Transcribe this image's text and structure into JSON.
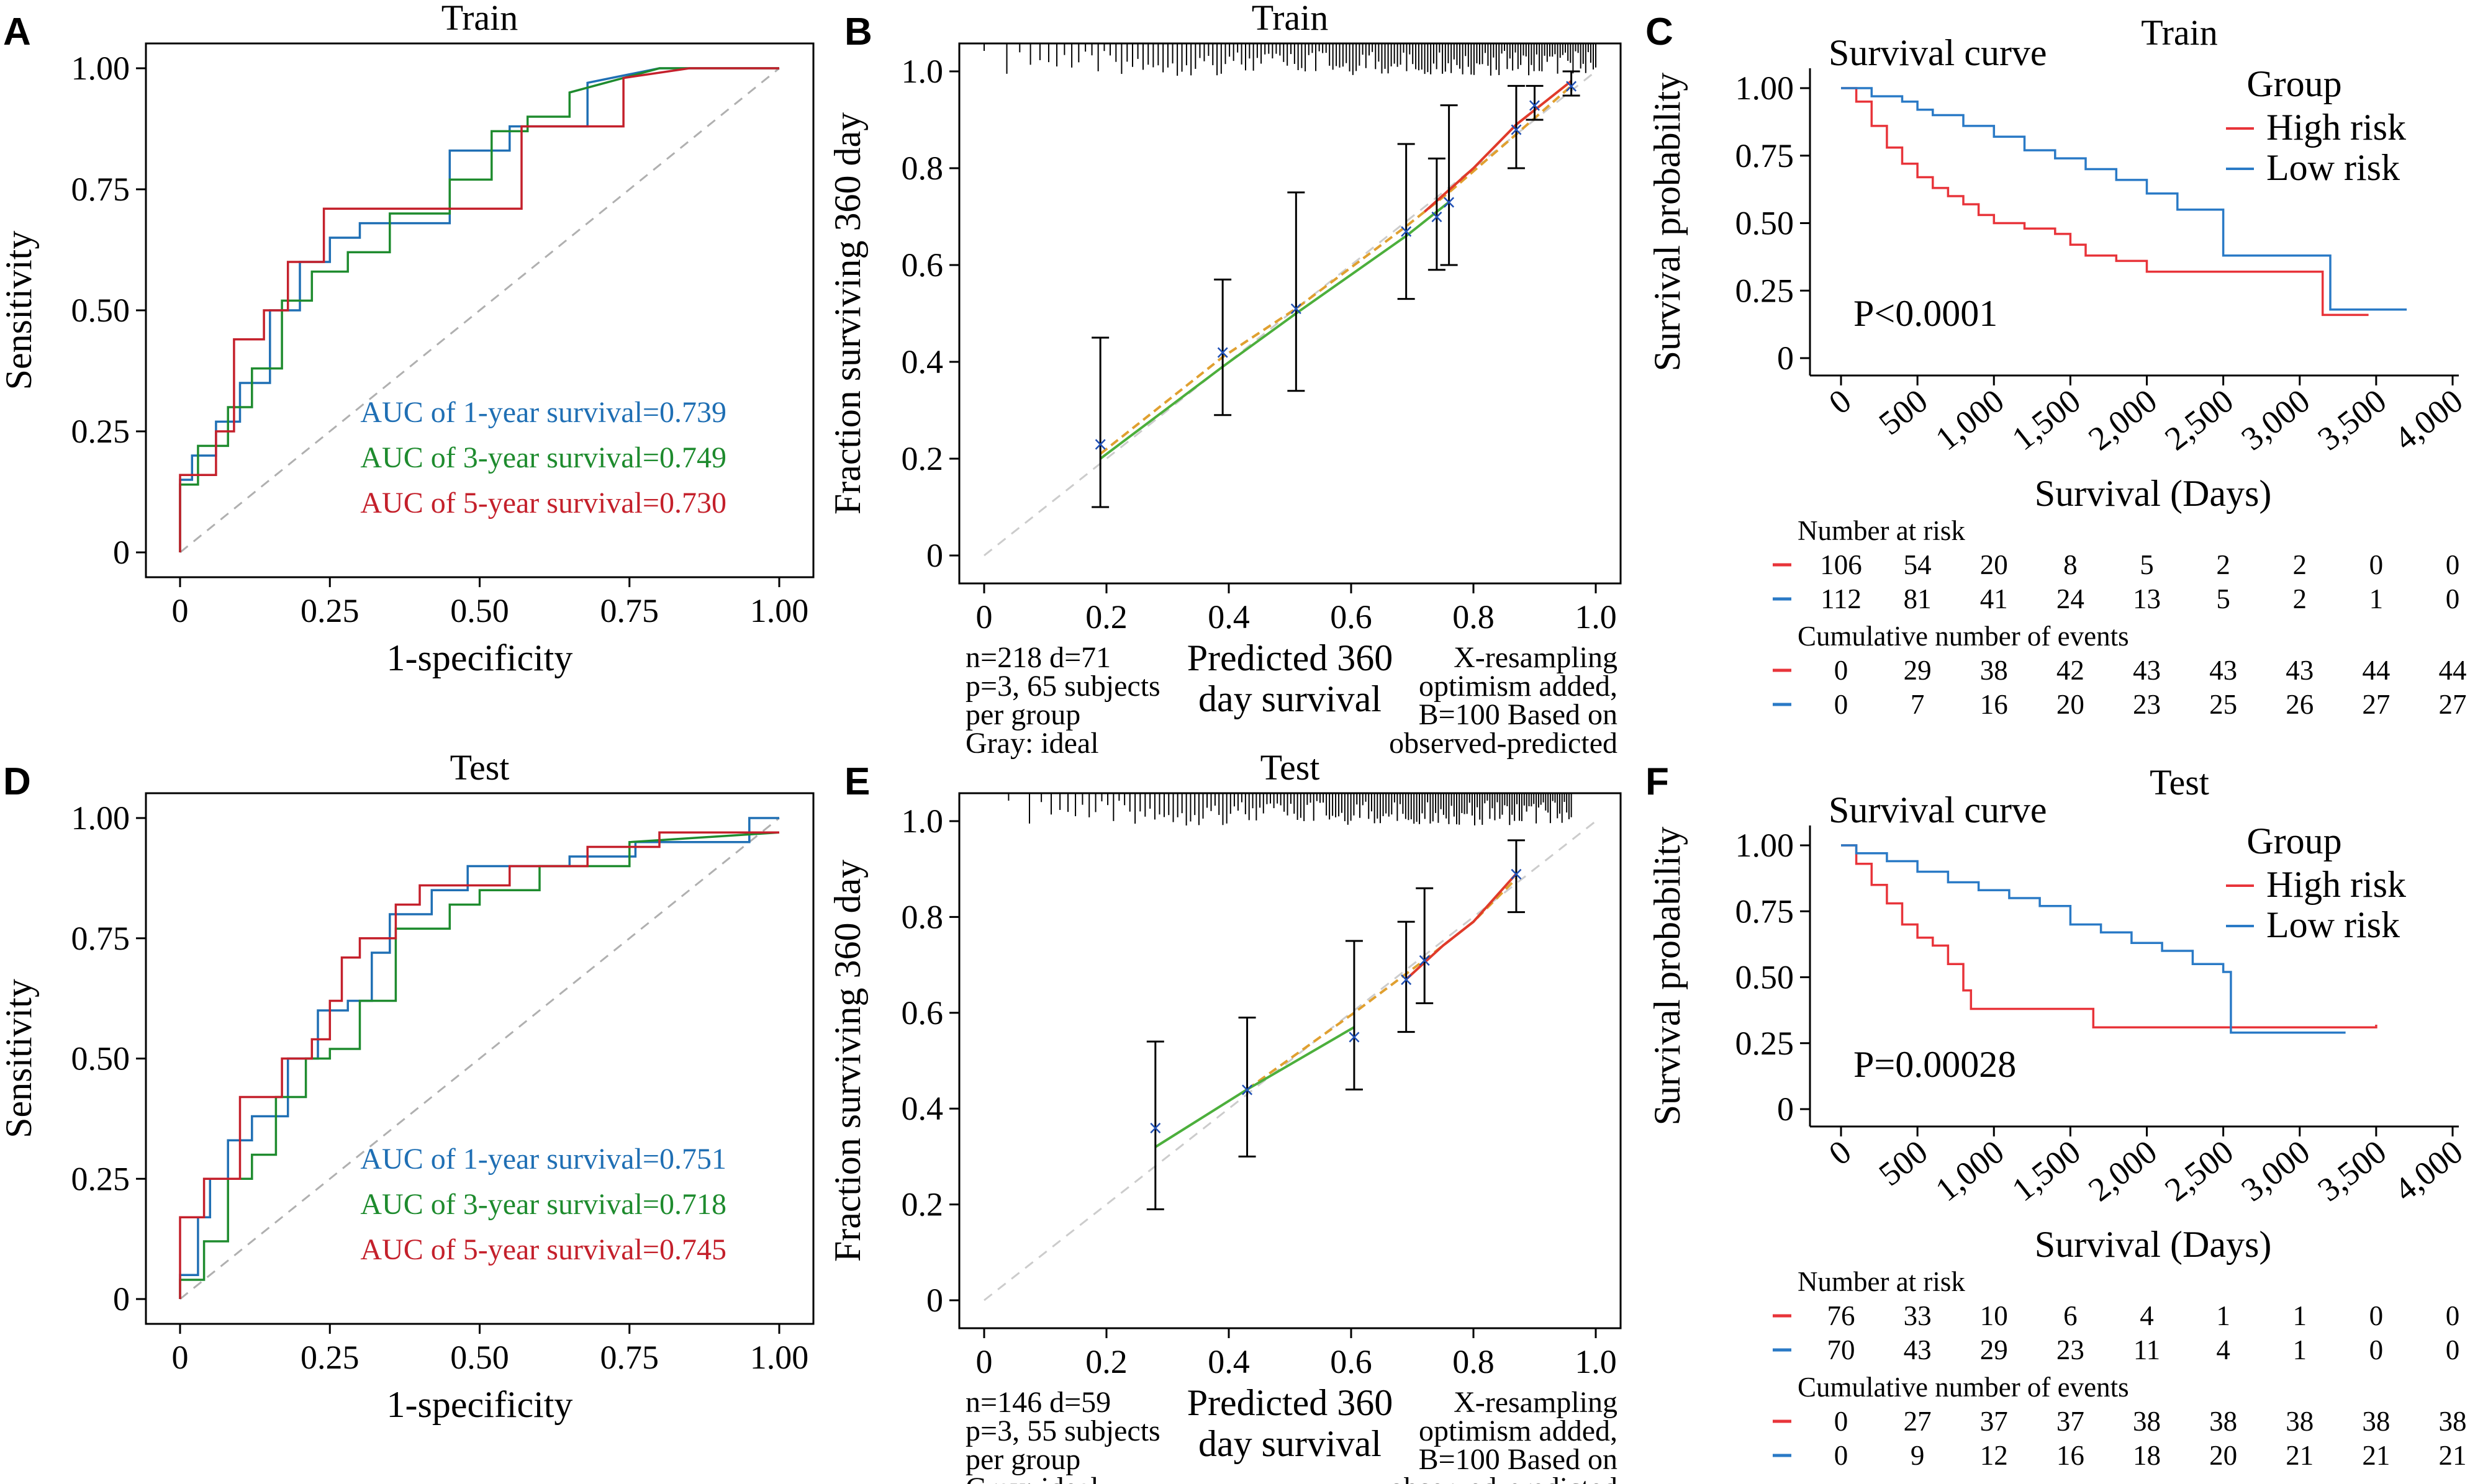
{
  "chart_data": [
    {
      "id": "A",
      "type": "line",
      "title": "Train",
      "xlabel": "1-specificity",
      "ylabel": "Sensitivity",
      "xlim": [
        0,
        1
      ],
      "ylim": [
        0,
        1
      ],
      "xticks": [
        "0",
        "0.25",
        "0.50",
        "0.75",
        "1.00"
      ],
      "yticks": [
        "0",
        "0.25",
        "0.50",
        "0.75",
        "1.00"
      ],
      "reference": "diagonal",
      "series": [
        {
          "name": "AUC of 1-year survival=0.739",
          "color": "#1f6fb4",
          "x": [
            0,
            0,
            0.02,
            0.02,
            0.06,
            0.06,
            0.1,
            0.1,
            0.15,
            0.15,
            0.2,
            0.2,
            0.25,
            0.25,
            0.3,
            0.3,
            0.45,
            0.45,
            0.55,
            0.55,
            0.68,
            0.68,
            0.8,
            0.84,
            0.9,
            1
          ],
          "y": [
            0,
            0.15,
            0.15,
            0.2,
            0.2,
            0.27,
            0.27,
            0.35,
            0.35,
            0.5,
            0.5,
            0.6,
            0.6,
            0.65,
            0.65,
            0.68,
            0.68,
            0.83,
            0.83,
            0.88,
            0.88,
            0.97,
            1,
            1,
            1,
            1
          ]
        },
        {
          "name": "AUC of 3-year survival=0.749",
          "color": "#1e8b2e",
          "x": [
            0,
            0,
            0.03,
            0.03,
            0.08,
            0.08,
            0.12,
            0.12,
            0.17,
            0.17,
            0.22,
            0.22,
            0.28,
            0.28,
            0.35,
            0.35,
            0.45,
            0.45,
            0.52,
            0.52,
            0.58,
            0.58,
            0.65,
            0.65,
            0.8,
            1
          ],
          "y": [
            0,
            0.14,
            0.14,
            0.22,
            0.22,
            0.3,
            0.3,
            0.38,
            0.38,
            0.52,
            0.52,
            0.58,
            0.58,
            0.62,
            0.62,
            0.7,
            0.7,
            0.77,
            0.77,
            0.87,
            0.87,
            0.9,
            0.9,
            0.95,
            1,
            1
          ]
        },
        {
          "name": "AUC of 5-year survival=0.730",
          "color": "#c4202b",
          "x": [
            0,
            0,
            0.06,
            0.06,
            0.09,
            0.09,
            0.14,
            0.14,
            0.18,
            0.18,
            0.24,
            0.24,
            0.36,
            0.36,
            0.55,
            0.55,
            0.57,
            0.57,
            0.74,
            0.74,
            0.85,
            1
          ],
          "y": [
            0,
            0.16,
            0.16,
            0.25,
            0.25,
            0.44,
            0.44,
            0.5,
            0.5,
            0.6,
            0.6,
            0.71,
            0.71,
            0.71,
            0.71,
            0.71,
            0.71,
            0.88,
            0.88,
            0.98,
            1,
            1
          ]
        }
      ],
      "legend": [
        "AUC of 1-year survival=0.739",
        "AUC of 3-year survival=0.749",
        "AUC of 5-year survival=0.730"
      ]
    },
    {
      "id": "B",
      "type": "scatter",
      "title": "Train",
      "xlabel": "Predicted 360 day survival",
      "ylabel": "Fraction surviving 360 day",
      "xlim": [
        0,
        1
      ],
      "ylim": [
        0,
        1
      ],
      "xticks": [
        "0",
        "0.2",
        "0.4",
        "0.6",
        "0.8",
        "1.0"
      ],
      "yticks": [
        "0",
        "0.2",
        "0.4",
        "0.6",
        "0.8",
        "1.0"
      ],
      "points": [
        {
          "x": 0.19,
          "y": 0.23,
          "lo": 0.1,
          "hi": 0.45
        },
        {
          "x": 0.39,
          "y": 0.42,
          "lo": 0.29,
          "hi": 0.57
        },
        {
          "x": 0.51,
          "y": 0.51,
          "lo": 0.34,
          "hi": 0.75
        },
        {
          "x": 0.69,
          "y": 0.67,
          "lo": 0.53,
          "hi": 0.85
        },
        {
          "x": 0.74,
          "y": 0.7,
          "lo": 0.59,
          "hi": 0.82
        },
        {
          "x": 0.76,
          "y": 0.73,
          "lo": 0.6,
          "hi": 0.93
        },
        {
          "x": 0.87,
          "y": 0.88,
          "lo": 0.8,
          "hi": 0.97
        },
        {
          "x": 0.9,
          "y": 0.93,
          "lo": 0.9,
          "hi": 0.97
        },
        {
          "x": 0.96,
          "y": 0.97,
          "lo": 0.95,
          "hi": 1.0
        }
      ],
      "lines": [
        {
          "color": "#e0a030",
          "x": [
            0.19,
            0.39,
            0.51,
            0.69,
            0.76,
            0.87,
            0.96
          ],
          "y": [
            0.21,
            0.41,
            0.51,
            0.68,
            0.75,
            0.87,
            0.97
          ]
        },
        {
          "color": "#e03a2a",
          "x": [
            0.72,
            0.8,
            0.87,
            0.92,
            0.96
          ],
          "y": [
            0.71,
            0.8,
            0.89,
            0.94,
            0.98
          ]
        },
        {
          "color": "#4caf3c",
          "x": [
            0.19,
            0.39,
            0.51,
            0.69,
            0.76
          ],
          "y": [
            0.2,
            0.39,
            0.5,
            0.66,
            0.73
          ]
        }
      ],
      "rug_range": [
        0.0,
        1.0
      ],
      "notes_left": [
        "n=218 d=71",
        "p=3, 65 subjects",
        "per group",
        "Gray: ideal"
      ],
      "notes_right": [
        "X-resampling",
        "optimism added,",
        "B=100 Based on",
        "observed-predicted"
      ]
    },
    {
      "id": "C",
      "type": "line",
      "title": "Train",
      "subtitle": "Survival curve",
      "xlabel": "Survival (Days)",
      "ylabel": "Survival probability",
      "xlim": [
        0,
        4000
      ],
      "ylim": [
        0,
        1
      ],
      "xticks": [
        "0",
        "500",
        "1,000",
        "1,500",
        "2,000",
        "2,500",
        "3,000",
        "3,500",
        "4,000"
      ],
      "yticks": [
        "0",
        "0.25",
        "0.50",
        "0.75",
        "1.00"
      ],
      "legend_title": "Group",
      "series": [
        {
          "name": "High risk",
          "color": "#e8343a",
          "x": [
            0,
            100,
            200,
            300,
            400,
            500,
            600,
            700,
            800,
            900,
            1000,
            1200,
            1400,
            1500,
            1600,
            1800,
            2000,
            2500,
            3000,
            3100,
            3150,
            3450
          ],
          "y": [
            1,
            0.95,
            0.86,
            0.78,
            0.72,
            0.67,
            0.63,
            0.6,
            0.57,
            0.53,
            0.5,
            0.48,
            0.46,
            0.42,
            0.38,
            0.36,
            0.32,
            0.32,
            0.32,
            0.32,
            0.16,
            0.16
          ]
        },
        {
          "name": "Low risk",
          "color": "#2a7ac6",
          "x": [
            0,
            200,
            400,
            500,
            600,
            800,
            1000,
            1200,
            1400,
            1600,
            1800,
            2000,
            2200,
            2400,
            2500,
            3000,
            3100,
            3200,
            3500,
            3700
          ],
          "y": [
            1,
            0.97,
            0.95,
            0.92,
            0.9,
            0.86,
            0.82,
            0.77,
            0.74,
            0.7,
            0.66,
            0.61,
            0.55,
            0.55,
            0.38,
            0.38,
            0.38,
            0.18,
            0.18,
            0.18
          ]
        }
      ],
      "pvalue": "P<0.0001",
      "risk_table": {
        "title": "Number at risk",
        "rows": [
          {
            "color": "#e8343a",
            "values": [
              "106",
              "54",
              "20",
              "8",
              "5",
              "2",
              "2",
              "0",
              "0"
            ]
          },
          {
            "color": "#2a7ac6",
            "values": [
              "112",
              "81",
              "41",
              "24",
              "13",
              "5",
              "2",
              "1",
              "0"
            ]
          }
        ]
      },
      "events_table": {
        "title": "Cumulative number of events",
        "rows": [
          {
            "color": "#e8343a",
            "values": [
              "0",
              "29",
              "38",
              "42",
              "43",
              "43",
              "43",
              "44",
              "44"
            ]
          },
          {
            "color": "#2a7ac6",
            "values": [
              "0",
              "7",
              "16",
              "20",
              "23",
              "25",
              "26",
              "27",
              "27"
            ]
          }
        ]
      }
    },
    {
      "id": "D",
      "type": "line",
      "title": "Test",
      "xlabel": "1-specificity",
      "ylabel": "Sensitivity",
      "xlim": [
        0,
        1
      ],
      "ylim": [
        0,
        1
      ],
      "xticks": [
        "0",
        "0.25",
        "0.50",
        "0.75",
        "1.00"
      ],
      "yticks": [
        "0",
        "0.25",
        "0.50",
        "0.75",
        "1.00"
      ],
      "reference": "diagonal",
      "series": [
        {
          "name": "AUC of 1-year survival=0.751",
          "color": "#1f6fb4",
          "x": [
            0,
            0,
            0.03,
            0.03,
            0.05,
            0.05,
            0.08,
            0.08,
            0.12,
            0.12,
            0.18,
            0.18,
            0.23,
            0.23,
            0.28,
            0.28,
            0.32,
            0.32,
            0.35,
            0.35,
            0.42,
            0.42,
            0.48,
            0.48,
            0.65,
            0.65,
            0.76,
            0.76,
            0.95,
            0.95,
            0.98,
            1
          ],
          "y": [
            0,
            0.05,
            0.05,
            0.17,
            0.17,
            0.25,
            0.25,
            0.33,
            0.33,
            0.38,
            0.38,
            0.5,
            0.5,
            0.6,
            0.6,
            0.62,
            0.62,
            0.72,
            0.72,
            0.8,
            0.8,
            0.85,
            0.85,
            0.9,
            0.9,
            0.92,
            0.92,
            0.95,
            0.95,
            1,
            1,
            1
          ]
        },
        {
          "name": "AUC of 3-year survival=0.718",
          "color": "#1e8b2e",
          "x": [
            0,
            0,
            0.04,
            0.04,
            0.08,
            0.08,
            0.12,
            0.12,
            0.16,
            0.16,
            0.21,
            0.21,
            0.25,
            0.25,
            0.3,
            0.3,
            0.36,
            0.36,
            0.45,
            0.45,
            0.5,
            0.5,
            0.6,
            0.6,
            0.75,
            0.75,
            1
          ],
          "y": [
            0,
            0.04,
            0.04,
            0.12,
            0.12,
            0.25,
            0.25,
            0.3,
            0.3,
            0.42,
            0.42,
            0.5,
            0.5,
            0.52,
            0.52,
            0.62,
            0.62,
            0.77,
            0.77,
            0.82,
            0.82,
            0.85,
            0.85,
            0.9,
            0.9,
            0.95,
            0.97
          ]
        },
        {
          "name": "AUC of 5-year survival=0.745",
          "color": "#c4202b",
          "x": [
            0,
            0,
            0.04,
            0.04,
            0.1,
            0.1,
            0.17,
            0.17,
            0.22,
            0.22,
            0.25,
            0.25,
            0.27,
            0.27,
            0.3,
            0.3,
            0.36,
            0.36,
            0.4,
            0.4,
            0.55,
            0.55,
            0.68,
            0.68,
            0.8,
            0.8,
            1
          ],
          "y": [
            0,
            0.17,
            0.17,
            0.25,
            0.25,
            0.42,
            0.42,
            0.5,
            0.5,
            0.54,
            0.54,
            0.62,
            0.62,
            0.71,
            0.71,
            0.75,
            0.75,
            0.82,
            0.82,
            0.86,
            0.86,
            0.9,
            0.9,
            0.94,
            0.94,
            0.97,
            0.97
          ]
        }
      ],
      "legend": [
        "AUC of 1-year survival=0.751",
        "AUC of 3-year survival=0.718",
        "AUC of 5-year survival=0.745"
      ]
    },
    {
      "id": "E",
      "type": "scatter",
      "title": "Test",
      "xlabel": "Predicted 360 day survival",
      "ylabel": "Fraction surviving 360 day",
      "xlim": [
        0,
        1
      ],
      "ylim": [
        0,
        1
      ],
      "xticks": [
        "0",
        "0.2",
        "0.4",
        "0.6",
        "0.8",
        "1.0"
      ],
      "yticks": [
        "0",
        "0.2",
        "0.4",
        "0.6",
        "0.8",
        "1.0"
      ],
      "points": [
        {
          "x": 0.28,
          "y": 0.36,
          "lo": 0.19,
          "hi": 0.54
        },
        {
          "x": 0.43,
          "y": 0.44,
          "lo": 0.3,
          "hi": 0.59
        },
        {
          "x": 0.605,
          "y": 0.55,
          "lo": 0.44,
          "hi": 0.75
        },
        {
          "x": 0.69,
          "y": 0.67,
          "lo": 0.56,
          "hi": 0.79
        },
        {
          "x": 0.72,
          "y": 0.71,
          "lo": 0.62,
          "hi": 0.86
        },
        {
          "x": 0.87,
          "y": 0.89,
          "lo": 0.81,
          "hi": 0.96
        }
      ],
      "lines": [
        {
          "color": "#e0a030",
          "x": [
            0.43,
            0.605,
            0.72,
            0.8,
            0.87
          ],
          "y": [
            0.44,
            0.6,
            0.71,
            0.79,
            0.88
          ]
        },
        {
          "color": "#e03a2a",
          "x": [
            0.69,
            0.75,
            0.8,
            0.87
          ],
          "y": [
            0.67,
            0.74,
            0.79,
            0.89
          ]
        },
        {
          "color": "#4caf3c",
          "x": [
            0.28,
            0.43,
            0.605
          ],
          "y": [
            0.32,
            0.44,
            0.57
          ]
        }
      ],
      "rug_range": [
        0.04,
        0.96
      ],
      "notes_left": [
        "n=146 d=59",
        "p=3, 55 subjects",
        "per group",
        "Gray: ideal"
      ],
      "notes_right": [
        "X-resampling",
        "optimism added,",
        "B=100 Based on",
        "observed-predicted"
      ]
    },
    {
      "id": "F",
      "type": "line",
      "title": "Test",
      "subtitle": "Survival curve",
      "xlabel": "Survival (Days)",
      "ylabel": "Survival probability",
      "xlim": [
        0,
        4000
      ],
      "ylim": [
        0,
        1
      ],
      "xticks": [
        "0",
        "500",
        "1,000",
        "1,500",
        "2,000",
        "2,500",
        "3,000",
        "3,500",
        "4,000"
      ],
      "yticks": [
        "0",
        "0.25",
        "0.50",
        "0.75",
        "1.00"
      ],
      "legend_title": "Group",
      "series": [
        {
          "name": "High risk",
          "color": "#e8343a",
          "x": [
            0,
            100,
            200,
            300,
            400,
            500,
            600,
            700,
            800,
            850,
            1000,
            1200,
            1400,
            1600,
            1650,
            2000,
            2500,
            3000,
            3500
          ],
          "y": [
            1,
            0.93,
            0.85,
            0.78,
            0.7,
            0.65,
            0.62,
            0.55,
            0.45,
            0.38,
            0.38,
            0.38,
            0.38,
            0.38,
            0.31,
            0.31,
            0.31,
            0.31,
            0.32
          ]
        },
        {
          "name": "Low risk",
          "color": "#2a7ac6",
          "x": [
            0,
            100,
            300,
            500,
            700,
            900,
            1100,
            1300,
            1500,
            1700,
            1900,
            2100,
            2300,
            2500,
            2550,
            3000,
            3300
          ],
          "y": [
            1,
            0.97,
            0.94,
            0.9,
            0.86,
            0.83,
            0.8,
            0.77,
            0.7,
            0.67,
            0.63,
            0.6,
            0.55,
            0.52,
            0.29,
            0.29,
            0.29
          ]
        }
      ],
      "pvalue": "P=0.00028",
      "risk_table": {
        "title": "Number at risk",
        "rows": [
          {
            "color": "#e8343a",
            "values": [
              "76",
              "33",
              "10",
              "6",
              "4",
              "1",
              "1",
              "0",
              "0"
            ]
          },
          {
            "color": "#2a7ac6",
            "values": [
              "70",
              "43",
              "29",
              "23",
              "11",
              "4",
              "1",
              "0",
              "0"
            ]
          }
        ]
      },
      "events_table": {
        "title": "Cumulative number of events",
        "rows": [
          {
            "color": "#e8343a",
            "values": [
              "0",
              "27",
              "37",
              "37",
              "38",
              "38",
              "38",
              "38",
              "38"
            ]
          },
          {
            "color": "#2a7ac6",
            "values": [
              "0",
              "9",
              "12",
              "16",
              "18",
              "20",
              "21",
              "21",
              "21"
            ]
          }
        ]
      }
    }
  ]
}
